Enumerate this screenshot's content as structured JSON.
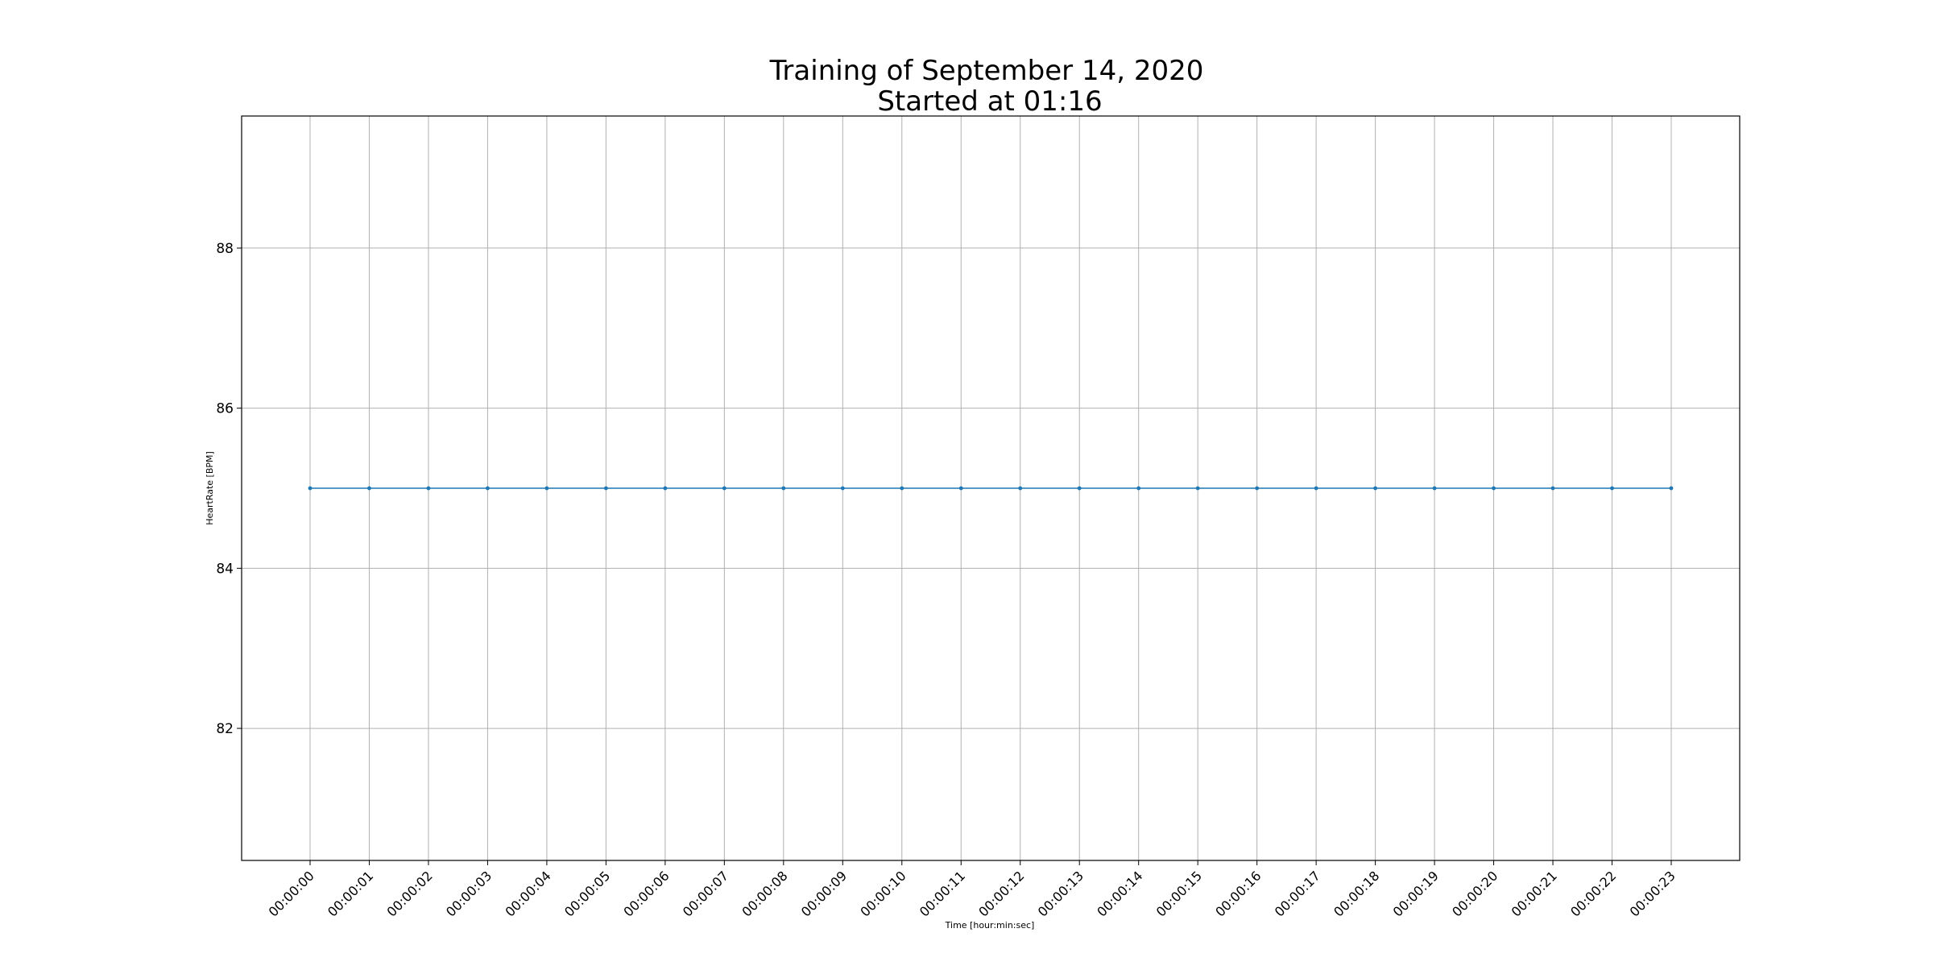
{
  "chart_data": {
    "type": "line",
    "title": "Training of September 14, 2020",
    "subtitle": "Started at 01:16",
    "xlabel": "Time [hour:min:sec]",
    "ylabel": "HeartRate [BPM]",
    "x": [
      "00:00:00",
      "00:00:01",
      "00:00:02",
      "00:00:03",
      "00:00:04",
      "00:00:05",
      "00:00:06",
      "00:00:07",
      "00:00:08",
      "00:00:09",
      "00:00:10",
      "00:00:11",
      "00:00:12",
      "00:00:13",
      "00:00:14",
      "00:00:15",
      "00:00:16",
      "00:00:17",
      "00:00:18",
      "00:00:19",
      "00:00:20",
      "00:00:21",
      "00:00:22",
      "00:00:23"
    ],
    "series": [
      {
        "values": [
          85,
          85,
          85,
          85,
          85,
          85,
          85,
          85,
          85,
          85,
          85,
          85,
          85,
          85,
          85,
          85,
          85,
          85,
          85,
          85,
          85,
          85,
          85,
          85
        ],
        "color": "#1f77b4"
      }
    ],
    "yticks": [
      82,
      84,
      86,
      88
    ],
    "ylim": [
      80.35,
      89.65
    ],
    "grid": true,
    "colors": {
      "line": "#1f77b4",
      "grid": "#b0b0b0",
      "axes": "#000000"
    }
  }
}
